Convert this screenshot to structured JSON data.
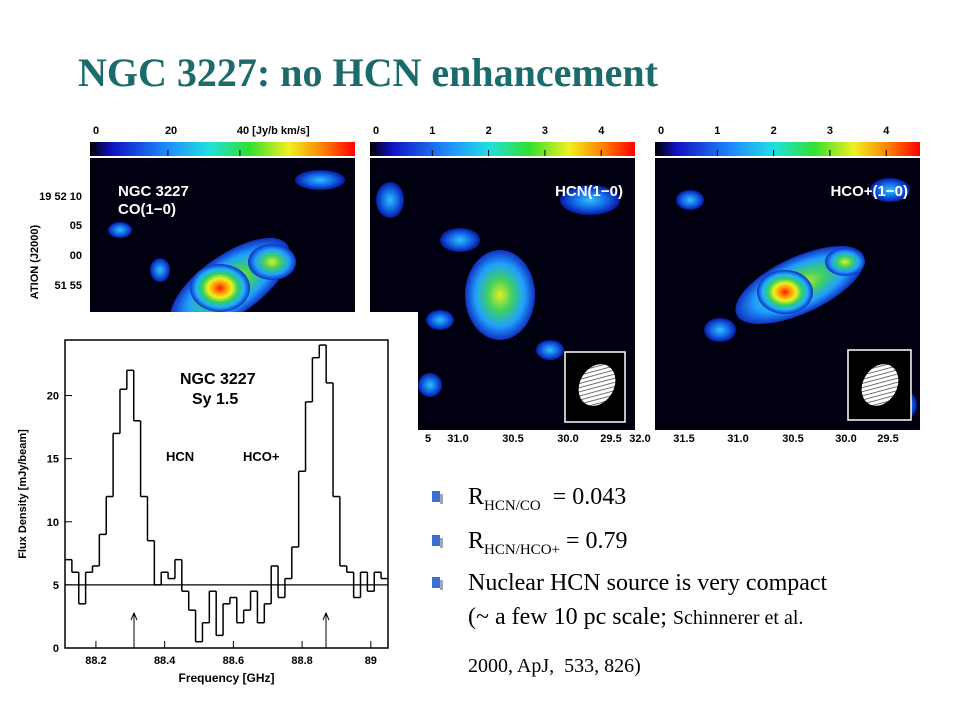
{
  "title": "NGC 3227: no HCN enhancement",
  "maps": [
    {
      "label": [
        "NGC 3227",
        "CO(1−0)"
      ],
      "colorbar_range": [
        0,
        72
      ],
      "colorbar_ticks": [
        0,
        20,
        {
          "value": 40,
          "label": "40 [Jy/b km/s]"
        }
      ]
    },
    {
      "label": [
        "HCN(1−0)"
      ],
      "colorbar_range": [
        0,
        4.6
      ],
      "colorbar_ticks": [
        0,
        1,
        2,
        3,
        4
      ],
      "ra_ticks": [
        "5",
        "31.0",
        "30.5",
        "30.0",
        "29.5",
        "32.0"
      ]
    },
    {
      "label": [
        "HCO+(1−0)"
      ],
      "colorbar_range": [
        0,
        4.6
      ],
      "colorbar_ticks": [
        0,
        1,
        2,
        3,
        4
      ],
      "ra_ticks": [
        "31.5",
        "31.0",
        "30.5",
        "30.0",
        "29.5"
      ]
    }
  ],
  "dec_axis": {
    "label": "ATION (J2000)",
    "ticks": [
      "19 52 10",
      "05",
      "00",
      "51 55"
    ]
  },
  "chart_data": {
    "type": "step",
    "title": [
      "NGC 3227",
      "Sy 1.5"
    ],
    "annotations": [
      "HCN",
      "HCO+"
    ],
    "x_label": "Frequency [GHz]",
    "y_label": "Flux Density [mJy/beam]",
    "x": [
      88.11,
      88.13,
      88.15,
      88.17,
      88.19,
      88.21,
      88.23,
      88.25,
      88.27,
      88.29,
      88.31,
      88.33,
      88.35,
      88.37,
      88.39,
      88.41,
      88.43,
      88.45,
      88.47,
      88.49,
      88.51,
      88.53,
      88.55,
      88.57,
      88.59,
      88.61,
      88.63,
      88.65,
      88.67,
      88.69,
      88.71,
      88.73,
      88.75,
      88.77,
      88.79,
      88.81,
      88.83,
      88.85,
      88.87,
      88.89,
      88.91,
      88.93,
      88.95,
      88.97,
      88.99,
      89.01,
      89.03
    ],
    "values": [
      7,
      6,
      3.5,
      6,
      6.5,
      9,
      12,
      17,
      20.5,
      22,
      18,
      12,
      8.5,
      5,
      6,
      5.5,
      7,
      4.5,
      3,
      0.5,
      2,
      4.5,
      1,
      3.5,
      4,
      2,
      3,
      4.5,
      2,
      3.5,
      6.5,
      4,
      5.5,
      8,
      14,
      19.5,
      23,
      24,
      21,
      12,
      6.5,
      6,
      4,
      6,
      4.5,
      6,
      5.5
    ],
    "color": "#000000",
    "baseline": 5,
    "xlim": [
      88.11,
      89.05
    ],
    "ylim": [
      0,
      24.4
    ],
    "xticks": [
      88.2,
      88.4,
      88.6,
      88.8,
      89.0
    ],
    "yticks": [
      0,
      5,
      10,
      15,
      20
    ]
  },
  "bullets": [
    {
      "main": "R",
      "sub": "HCN/CO",
      "rest": "  = 0.043"
    },
    {
      "main": "R",
      "sub": "HCN/HCO+",
      "rest": " = 0.79"
    },
    {
      "lines": [
        "Nuclear HCN source is very compact",
        "(~ a few 10 pc scale; "
      ],
      "ref": [
        "Schinnerer et al.",
        "2000, ApJ,  533, 826)"
      ]
    }
  ]
}
